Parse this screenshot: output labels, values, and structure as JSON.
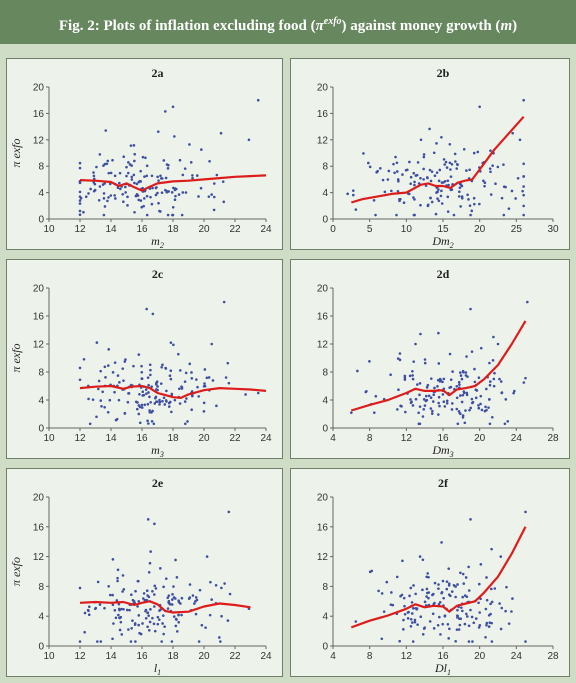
{
  "figure": {
    "title_prefix": "Fig. 2: Plots of inflation excluding food (",
    "title_symbol": "π",
    "title_superscript": "exfo",
    "title_middle": ") against money growth (",
    "title_var": "m",
    "title_suffix": ")"
  },
  "colors": {
    "header": "#67875f",
    "frame": "#cfdcc6",
    "panel_bg": "#edf2ea",
    "scatter": "#3e4fa3",
    "fit_line": "#dd1c1c"
  },
  "chart_data": [
    {
      "type": "scatter",
      "panel_title": "2a",
      "xlabel": "m",
      "xlabel_sub": "2",
      "ylabel": "π exfo",
      "xlim": [
        10,
        24
      ],
      "ylim": [
        0,
        20
      ],
      "xticks": [
        10,
        12,
        14,
        16,
        18,
        20,
        22,
        24
      ],
      "yticks": [
        0,
        4,
        8,
        12,
        16,
        20
      ],
      "series": [
        {
          "kind": "points",
          "seed": 11,
          "n": 170,
          "xrange": [
            12,
            24
          ],
          "xcenter": 16,
          "ycenter": 5,
          "extra": [
            [
              18,
              17
            ],
            [
              23.5,
              18
            ],
            [
              17.5,
              16.3
            ],
            [
              22.9,
              12
            ],
            [
              21.1,
              13
            ]
          ]
        },
        {
          "kind": "line",
          "x": [
            12,
            13,
            14,
            14.5,
            15,
            15.5,
            16,
            16.5,
            17,
            18,
            19,
            20,
            21,
            22,
            23,
            24
          ],
          "y": [
            5.9,
            5.8,
            5.6,
            5.0,
            5.4,
            4.8,
            4.3,
            4.9,
            5.4,
            5.7,
            5.8,
            6.0,
            6.2,
            6.4,
            6.5,
            6.6
          ]
        }
      ]
    },
    {
      "type": "scatter",
      "panel_title": "2b",
      "xlabel": "Dm",
      "xlabel_sub": "2",
      "ylabel": "",
      "xlim": [
        0,
        30
      ],
      "ylim": [
        0,
        20
      ],
      "xticks": [
        0,
        5,
        10,
        15,
        20,
        25,
        30
      ],
      "yticks": [
        0,
        4,
        8,
        12,
        16,
        20
      ],
      "series": [
        {
          "kind": "points",
          "seed": 23,
          "n": 170,
          "xrange": [
            2,
            26
          ],
          "xcenter": 15,
          "ycenter": 5,
          "extra": [
            [
              20,
              17
            ],
            [
              26,
              18
            ],
            [
              25.5,
              12
            ],
            [
              24.5,
              13
            ],
            [
              12,
              12
            ]
          ]
        },
        {
          "kind": "line",
          "x": [
            2.5,
            4,
            6,
            8,
            10,
            12,
            13,
            14,
            15,
            16,
            17,
            18,
            19,
            20,
            22,
            24,
            26
          ],
          "y": [
            2.5,
            3.0,
            3.4,
            3.8,
            4.0,
            5.2,
            5.4,
            5.0,
            5.0,
            4.7,
            5.5,
            5.8,
            6.0,
            7.5,
            10.5,
            13,
            15.5
          ]
        }
      ]
    },
    {
      "type": "scatter",
      "panel_title": "2c",
      "xlabel": "m",
      "xlabel_sub": "3",
      "ylabel": "π exfo",
      "xlim": [
        10,
        24
      ],
      "ylim": [
        0,
        20
      ],
      "xticks": [
        10,
        12,
        14,
        16,
        18,
        20,
        22,
        24
      ],
      "yticks": [
        0,
        4,
        8,
        12,
        16,
        20
      ],
      "series": [
        {
          "kind": "points",
          "seed": 37,
          "n": 170,
          "xrange": [
            12,
            24
          ],
          "xcenter": 16.5,
          "ycenter": 5,
          "extra": [
            [
              16.3,
              17
            ],
            [
              21.3,
              18
            ],
            [
              16.7,
              16.3
            ],
            [
              23.5,
              5
            ],
            [
              20.5,
              12
            ]
          ]
        },
        {
          "kind": "line",
          "x": [
            12,
            13,
            14,
            14.8,
            15.3,
            16,
            16.5,
            17,
            17.5,
            18,
            18.5,
            19,
            20,
            21,
            22,
            23,
            24
          ],
          "y": [
            5.7,
            5.9,
            6.0,
            5.6,
            5.9,
            6.0,
            5.7,
            5.0,
            4.7,
            4.4,
            4.3,
            4.8,
            5.4,
            5.7,
            5.6,
            5.5,
            5.3
          ]
        }
      ]
    },
    {
      "type": "scatter",
      "panel_title": "2d",
      "xlabel": "Dm",
      "xlabel_sub": "3",
      "ylabel": "",
      "xlim": [
        4,
        28
      ],
      "ylim": [
        0,
        20
      ],
      "xticks": [
        4,
        8,
        12,
        16,
        20,
        24,
        28
      ],
      "yticks": [
        0,
        4,
        8,
        12,
        16,
        20
      ],
      "series": [
        {
          "kind": "points",
          "seed": 53,
          "n": 170,
          "xrange": [
            6,
            25
          ],
          "xcenter": 16,
          "ycenter": 5,
          "extra": [
            [
              19,
              17
            ],
            [
              25.2,
              18
            ],
            [
              21.5,
              13
            ],
            [
              22,
              12
            ],
            [
              13,
              12
            ]
          ]
        },
        {
          "kind": "line",
          "x": [
            6,
            8,
            10,
            12,
            13,
            14,
            15,
            16,
            16.7,
            17.5,
            18.5,
            19.5,
            20.5,
            22,
            23.5,
            25
          ],
          "y": [
            2.5,
            3.3,
            4.0,
            5.0,
            5.6,
            5.3,
            5.3,
            5.4,
            4.7,
            5.5,
            5.7,
            6.0,
            7.0,
            9.0,
            12,
            15.3
          ]
        }
      ]
    },
    {
      "type": "scatter",
      "panel_title": "2e",
      "xlabel": "l",
      "xlabel_sub": "1",
      "ylabel": "π exfo",
      "xlim": [
        10,
        24
      ],
      "ylim": [
        0,
        20
      ],
      "xticks": [
        10,
        12,
        14,
        16,
        18,
        20,
        22,
        24
      ],
      "yticks": [
        0,
        4,
        8,
        12,
        16,
        20
      ],
      "series": [
        {
          "kind": "points",
          "seed": 71,
          "n": 170,
          "xrange": [
            12,
            23
          ],
          "xcenter": 16.5,
          "ycenter": 5,
          "extra": [
            [
              16.4,
              17
            ],
            [
              21.6,
              18
            ],
            [
              16.8,
              16.4
            ],
            [
              22.9,
              5
            ],
            [
              20.2,
              12
            ]
          ]
        },
        {
          "kind": "line",
          "x": [
            12,
            13,
            14,
            14.8,
            15.5,
            16,
            16.5,
            17,
            17.5,
            18,
            19,
            20,
            21,
            22,
            23
          ],
          "y": [
            5.8,
            5.9,
            5.8,
            5.9,
            5.5,
            5.8,
            6.0,
            5.6,
            4.7,
            4.5,
            4.6,
            5.3,
            5.7,
            5.5,
            5.2
          ]
        }
      ]
    },
    {
      "type": "scatter",
      "panel_title": "2f",
      "xlabel": "Dl",
      "xlabel_sub": "1",
      "ylabel": "",
      "xlim": [
        4,
        28
      ],
      "ylim": [
        0,
        20
      ],
      "xticks": [
        4,
        8,
        12,
        16,
        20,
        24,
        28
      ],
      "yticks": [
        0,
        4,
        8,
        12,
        16,
        20
      ],
      "series": [
        {
          "kind": "points",
          "seed": 89,
          "n": 170,
          "xrange": [
            6,
            25
          ],
          "xcenter": 16,
          "ycenter": 5,
          "extra": [
            [
              19,
              17
            ],
            [
              25,
              18
            ],
            [
              21.3,
              13
            ],
            [
              22.3,
              12
            ],
            [
              13.5,
              12
            ]
          ]
        },
        {
          "kind": "line",
          "x": [
            6,
            8,
            10,
            12,
            13,
            14,
            15,
            16,
            16.7,
            17.5,
            18.5,
            19.5,
            20.5,
            22,
            23.5,
            25
          ],
          "y": [
            2.5,
            3.4,
            4.1,
            5.0,
            5.6,
            5.2,
            5.4,
            5.3,
            4.6,
            5.4,
            5.7,
            6.0,
            7.2,
            9.3,
            12.4,
            16
          ]
        }
      ]
    }
  ]
}
